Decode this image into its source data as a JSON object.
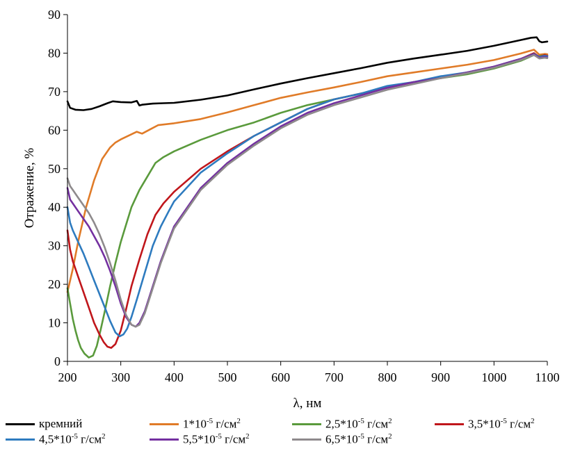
{
  "chart_data": {
    "type": "line",
    "xlabel": "λ, нм",
    "ylabel": "Отражение, %",
    "xlim": [
      200,
      1100
    ],
    "ylim": [
      0,
      90
    ],
    "x_ticks": [
      200,
      300,
      400,
      500,
      600,
      700,
      800,
      900,
      1000,
      1100
    ],
    "y_ticks": [
      0,
      10,
      20,
      30,
      40,
      50,
      60,
      70,
      80,
      90
    ],
    "grid": false,
    "legend_position": "bottom",
    "series": [
      {
        "id": "si",
        "name": "кремний",
        "name_base": "кремний",
        "name_exp": "",
        "name_unit": "",
        "color": "#000000",
        "x": [
          200,
          205,
          215,
          230,
          245,
          260,
          275,
          285,
          300,
          320,
          330,
          335,
          340,
          360,
          380,
          400,
          450,
          500,
          550,
          600,
          650,
          700,
          750,
          800,
          850,
          900,
          950,
          1000,
          1050,
          1070,
          1080,
          1085,
          1090,
          1100
        ],
        "y": [
          67.5,
          65.8,
          65.3,
          65.2,
          65.5,
          66.2,
          67.0,
          67.5,
          67.3,
          67.2,
          67.6,
          66.4,
          66.6,
          66.9,
          67.0,
          67.1,
          67.9,
          69.0,
          70.6,
          72.1,
          73.5,
          74.8,
          76.1,
          77.5,
          78.6,
          79.6,
          80.6,
          81.9,
          83.4,
          84.0,
          84.1,
          83.1,
          82.8,
          83.0
        ]
      },
      {
        "id": "s1",
        "name": "1*10-5 г/см2",
        "name_base": "1*10",
        "name_exp": "-5",
        "name_unit": "г/см",
        "color": "#E07B28",
        "x": [
          200,
          210,
          220,
          235,
          250,
          265,
          280,
          290,
          300,
          315,
          330,
          340,
          355,
          370,
          400,
          450,
          500,
          550,
          600,
          650,
          700,
          750,
          800,
          850,
          900,
          950,
          1000,
          1050,
          1075,
          1085,
          1095,
          1100
        ],
        "y": [
          18,
          24,
          31,
          40,
          47,
          52.5,
          55.5,
          56.8,
          57.6,
          58.6,
          59.6,
          59.1,
          60.2,
          61.3,
          61.8,
          62.9,
          64.6,
          66.5,
          68.4,
          69.8,
          71.1,
          72.5,
          74.0,
          75.0,
          76.0,
          77.0,
          78.2,
          79.9,
          80.9,
          79.6,
          79.8,
          79.7
        ]
      },
      {
        "id": "s2",
        "name": "2,5*10-5 г/см2",
        "name_base": "2,5*10",
        "name_exp": "-5",
        "name_unit": "г/см",
        "color": "#5A9A3C",
        "x": [
          200,
          205,
          210,
          215,
          220,
          225,
          232,
          240,
          248,
          255,
          262,
          270,
          280,
          290,
          300,
          310,
          320,
          335,
          350,
          365,
          380,
          400,
          450,
          500,
          550,
          600,
          650,
          700,
          750,
          800,
          850,
          900,
          950,
          1000,
          1050,
          1075,
          1085,
          1095,
          1100
        ],
        "y": [
          19,
          15,
          11,
          8,
          5.5,
          3.5,
          2,
          1,
          1.5,
          4,
          8,
          13,
          19.5,
          25.5,
          31,
          35.5,
          40,
          44.5,
          48,
          51.5,
          53,
          54.5,
          57.5,
          60,
          62,
          64.5,
          66.5,
          68,
          69.5,
          71,
          72.5,
          73.5,
          74.5,
          76,
          78,
          79.5,
          79.2,
          79.5,
          79.3
        ]
      },
      {
        "id": "s3",
        "name": "3,5*10-5 г/см2",
        "name_base": "3,5*10",
        "name_exp": "-5",
        "name_unit": "г/см",
        "color": "#C0161B",
        "x": [
          200,
          205,
          210,
          220,
          230,
          240,
          250,
          260,
          268,
          275,
          282,
          290,
          300,
          310,
          320,
          335,
          350,
          365,
          380,
          400,
          450,
          500,
          550,
          600,
          650,
          700,
          750,
          800,
          850,
          900,
          950,
          1000,
          1050,
          1075,
          1085,
          1095,
          1100
        ],
        "y": [
          34,
          29,
          26,
          22,
          18,
          14,
          10,
          7,
          5,
          3.8,
          3.5,
          4.5,
          8,
          13.5,
          19.5,
          26.5,
          33,
          38,
          41,
          44,
          50,
          54.5,
          58.5,
          62,
          65.5,
          68,
          69.5,
          71,
          72.5,
          73.5,
          75,
          76.5,
          78.5,
          80,
          79,
          79.5,
          79.3
        ]
      },
      {
        "id": "s4",
        "name": "4,5*10-5 г/см2",
        "name_base": "4,5*10",
        "name_exp": "-5",
        "name_unit": "г/см",
        "color": "#2E7BBF",
        "x": [
          200,
          205,
          210,
          220,
          230,
          240,
          250,
          260,
          270,
          280,
          290,
          298,
          305,
          312,
          320,
          330,
          345,
          360,
          375,
          390,
          400,
          450,
          500,
          550,
          600,
          650,
          700,
          750,
          800,
          850,
          900,
          950,
          1000,
          1050,
          1075,
          1085,
          1095,
          1100
        ],
        "y": [
          40,
          36,
          34,
          31,
          28,
          24.5,
          21,
          17.5,
          14,
          10.5,
          7.5,
          6.5,
          7,
          8.5,
          11.5,
          16,
          23,
          30,
          35,
          39,
          41.5,
          49,
          54,
          58.5,
          62,
          65.5,
          68,
          69.5,
          71.5,
          72.5,
          74,
          75,
          76.5,
          78.5,
          79.8,
          79,
          79.3,
          79.2
        ]
      },
      {
        "id": "s5",
        "name": "5,5*10-5 г/см2",
        "name_base": "5,5*10",
        "name_exp": "-5",
        "name_unit": "г/см",
        "color": "#7430A0",
        "x": [
          200,
          205,
          210,
          220,
          230,
          240,
          250,
          260,
          270,
          280,
          290,
          300,
          310,
          320,
          328,
          335,
          345,
          360,
          375,
          390,
          400,
          450,
          500,
          550,
          600,
          650,
          700,
          750,
          800,
          850,
          900,
          950,
          1000,
          1050,
          1075,
          1085,
          1095,
          1100
        ],
        "y": [
          45,
          42,
          41,
          39,
          37,
          35,
          32.5,
          30,
          27,
          23.5,
          19.5,
          15,
          11.5,
          9.5,
          9,
          10,
          13,
          19.5,
          26,
          31.5,
          35,
          45,
          51.5,
          56.5,
          61,
          64.5,
          67,
          69,
          71,
          72.5,
          73.5,
          75,
          76.5,
          78.5,
          79.7,
          78.8,
          79,
          78.9
        ]
      },
      {
        "id": "s6",
        "name": "6,5*10-5 г/см2",
        "name_base": "6,5*10",
        "name_exp": "-5",
        "name_unit": "г/см",
        "color": "#8E8A8C",
        "x": [
          200,
          205,
          210,
          220,
          230,
          240,
          250,
          260,
          270,
          280,
          290,
          300,
          310,
          320,
          328,
          335,
          345,
          360,
          375,
          390,
          400,
          450,
          500,
          550,
          600,
          650,
          700,
          750,
          800,
          850,
          900,
          950,
          1000,
          1050,
          1075,
          1085,
          1095,
          1100
        ],
        "y": [
          47.5,
          45.5,
          44.5,
          42.5,
          40.5,
          38.5,
          36,
          33,
          29.5,
          25.5,
          21,
          16,
          12,
          9.5,
          9,
          9.5,
          12.5,
          19,
          25.5,
          31,
          34.5,
          44.5,
          51,
          56,
          60.5,
          64,
          66.5,
          68.5,
          70.5,
          72,
          73.5,
          74.8,
          76.2,
          78.2,
          79.5,
          78.6,
          78.8,
          78.7
        ]
      }
    ]
  }
}
